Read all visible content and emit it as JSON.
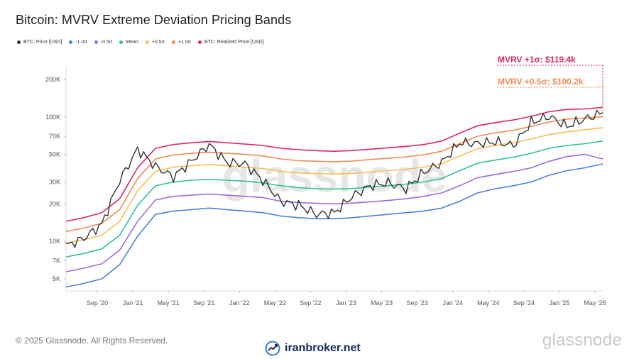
{
  "chart_data": {
    "type": "line",
    "title": "Bitcoin: MVRV Extreme Deviation Pricing Bands",
    "yscale": "log",
    "ylim": [
      4000,
      250000
    ],
    "y_ticks": [
      {
        "value": 5000,
        "label": "5K"
      },
      {
        "value": 7000,
        "label": "7K"
      },
      {
        "value": 10000,
        "label": "10K"
      },
      {
        "value": 20000,
        "label": "20K"
      },
      {
        "value": 30000,
        "label": "30K"
      },
      {
        "value": 50000,
        "label": "50K"
      },
      {
        "value": 70000,
        "label": "70K"
      },
      {
        "value": 100000,
        "label": "100K"
      },
      {
        "value": 200000,
        "label": "200K"
      }
    ],
    "x_ticks": [
      "Sep '20",
      "Jan '21",
      "May '21",
      "Sep '21",
      "Jan '22",
      "May '22",
      "Sep '22",
      "Jan '23",
      "May '23",
      "Sep '23",
      "Jan '24",
      "May '24",
      "Sep '24",
      "Jan '25",
      "May '25"
    ],
    "x": [
      "2020-07",
      "2020-09",
      "2020-11",
      "2021-01",
      "2021-03",
      "2021-05",
      "2021-07",
      "2021-09",
      "2021-11",
      "2022-01",
      "2022-03",
      "2022-05",
      "2022-07",
      "2022-09",
      "2022-11",
      "2023-01",
      "2023-03",
      "2023-05",
      "2023-07",
      "2023-09",
      "2023-11",
      "2024-01",
      "2024-03",
      "2024-05",
      "2024-07",
      "2024-09",
      "2024-11",
      "2025-01",
      "2025-03",
      "2025-05",
      "2025-06"
    ],
    "series": [
      {
        "name": "BTC: Price [USD]",
        "color": "#333333",
        "values": [
          9200,
          10600,
          13700,
          31000,
          55000,
          40000,
          33000,
          44000,
          60000,
          43000,
          42000,
          31000,
          21000,
          19500,
          16500,
          17000,
          23000,
          28000,
          29500,
          26500,
          36000,
          43000,
          62000,
          61000,
          63000,
          59000,
          90000,
          101000,
          84000,
          96000,
          108000
        ]
      },
      {
        "name": "-1.0σ",
        "color": "#4f7fd9",
        "values": [
          4300,
          4600,
          5000,
          6500,
          11000,
          16500,
          17500,
          18000,
          18500,
          18000,
          17500,
          17000,
          16000,
          15500,
          15200,
          15200,
          15500,
          16000,
          16500,
          17000,
          17500,
          18500,
          21000,
          24500,
          26500,
          28000,
          30000,
          34000,
          37000,
          39000,
          42000
        ]
      },
      {
        "name": "-0.5σ",
        "color": "#9b6cde",
        "values": [
          5700,
          6100,
          6600,
          8500,
          14500,
          21500,
          23000,
          23500,
          24000,
          23500,
          23000,
          22500,
          21000,
          20500,
          20200,
          20000,
          20300,
          20800,
          21300,
          22000,
          23000,
          24500,
          28000,
          32500,
          34500,
          36500,
          39000,
          44000,
          48000,
          50000,
          46000
        ]
      },
      {
        "name": "Mean",
        "color": "#2fc0a0",
        "values": [
          7500,
          8000,
          8700,
          11200,
          19500,
          28000,
          30000,
          31000,
          31500,
          31000,
          30500,
          29500,
          28000,
          27000,
          26500,
          26300,
          26600,
          27300,
          28000,
          28800,
          30000,
          32000,
          37000,
          42500,
          45000,
          47500,
          51000,
          56000,
          59000,
          61000,
          64000
        ]
      },
      {
        "name": "+0.5σ",
        "color": "#f5c056",
        "values": [
          9700,
          10300,
          11200,
          14500,
          25500,
          36500,
          39500,
          40500,
          41500,
          40500,
          39500,
          38500,
          36500,
          35500,
          35000,
          34800,
          35200,
          36000,
          37000,
          38000,
          39500,
          42000,
          48500,
          55500,
          59000,
          62000,
          66500,
          72000,
          76000,
          79000,
          82000
        ]
      },
      {
        "name": "+1.0σ",
        "color": "#f28a54",
        "values": [
          12000,
          12800,
          14000,
          18000,
          32000,
          46000,
          49500,
          51000,
          52000,
          51000,
          50000,
          48500,
          46000,
          44500,
          44000,
          43700,
          44200,
          45500,
          46500,
          47800,
          49700,
          53000,
          61000,
          70000,
          74500,
          78000,
          84000,
          91000,
          96000,
          98000,
          100200
        ]
      },
      {
        "name": "BTC: Realized Price [USD]",
        "color": "#e0245e",
        "values": [
          14500,
          15500,
          17000,
          22000,
          39000,
          56000,
          60000,
          62000,
          63500,
          62000,
          60500,
          59000,
          56000,
          54500,
          53500,
          53000,
          53700,
          55000,
          56500,
          58000,
          60000,
          64000,
          74000,
          85000,
          90000,
          94500,
          101000,
          110000,
          115000,
          116000,
          119400
        ]
      }
    ],
    "annotations": [
      {
        "text": "MVRV +1σ: $119.4k",
        "value": 119400,
        "color": "#e0245e"
      },
      {
        "text": "MVRV +0.5σ: $100.2k",
        "value": 100200,
        "color": "#f28a54"
      }
    ],
    "watermark": "glassnode",
    "grid": false
  },
  "footer": {
    "copyright": "© 2025 Glassnode. All Rights Reserved.",
    "brand": "glassnode",
    "site": "iranbroker.net"
  }
}
